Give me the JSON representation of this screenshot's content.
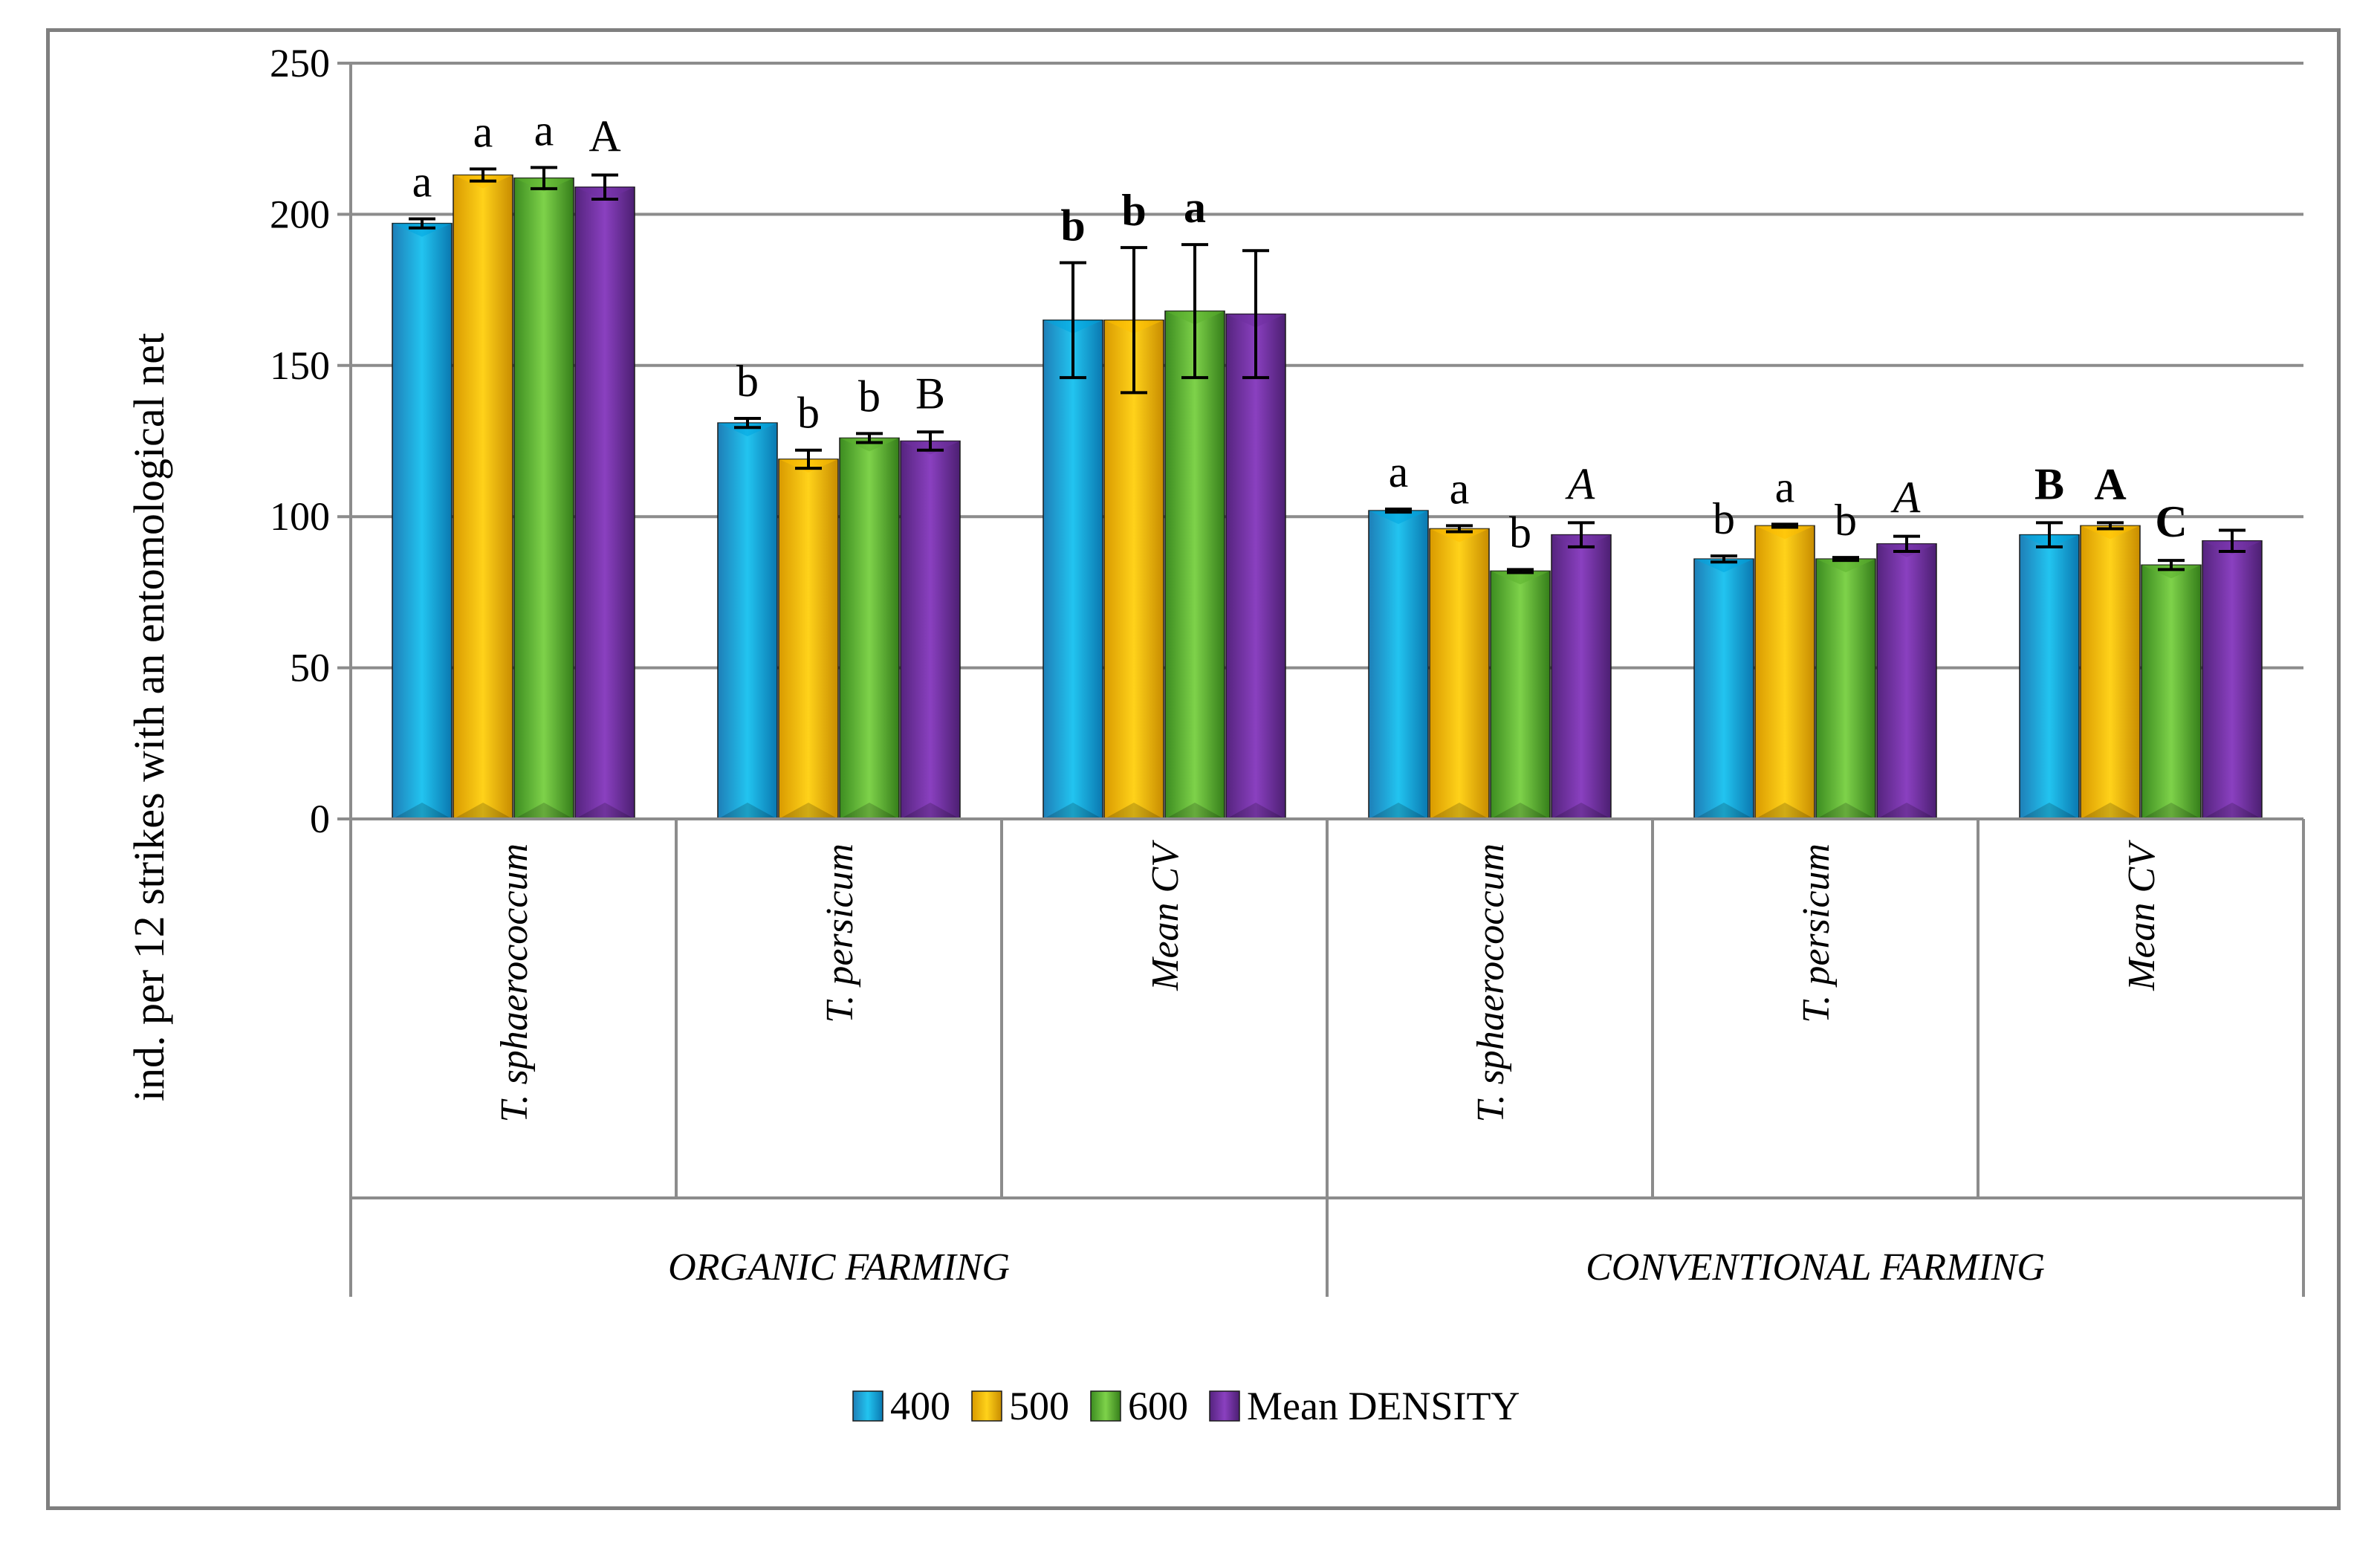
{
  "chart_data": {
    "type": "bar",
    "ylabel": "ind. per 12 strikes with an entomological net",
    "ylim": [
      0,
      250
    ],
    "yticks": [
      0,
      50,
      100,
      150,
      200,
      250
    ],
    "grid": true,
    "legend_position": "bottom",
    "groups": [
      {
        "label": "ORGANIC FARMING",
        "categories": [
          "T. sphaerococcum",
          "T. persicum",
          "Mean CV"
        ]
      },
      {
        "label": "CONVENTIONAL FARMING",
        "categories": [
          "T. sphaerococcum",
          "T. persicum",
          "Mean CV"
        ]
      }
    ],
    "categories": [
      "T. sphaerococcum",
      "T. persicum",
      "Mean CV",
      "T. sphaerococcum",
      "T. persicum",
      "Mean CV"
    ],
    "series": [
      {
        "name": "400",
        "color": "#00a6e0",
        "values": [
          197,
          131,
          165,
          102,
          86,
          94
        ],
        "errors": [
          1.5,
          1.5,
          19,
          0.5,
          1,
          4
        ],
        "letters": [
          "a",
          "b",
          "b",
          "a",
          "b",
          "B"
        ],
        "letter_style": [
          "normal",
          "normal",
          "bold",
          "normal",
          "normal",
          "bold"
        ]
      },
      {
        "name": "500",
        "color": "#ffc000",
        "values": [
          213,
          119,
          165,
          96,
          97,
          97
        ],
        "errors": [
          2,
          3,
          24,
          1,
          0.5,
          1
        ],
        "letters": [
          "a",
          "b",
          "b",
          "a",
          "a",
          "A"
        ],
        "letter_style": [
          "normal",
          "normal",
          "bold",
          "normal",
          "normal",
          "bold"
        ]
      },
      {
        "name": "600",
        "color": "#5db330",
        "values": [
          212,
          126,
          168,
          82,
          86,
          84
        ],
        "errors": [
          3.5,
          1.5,
          22,
          0.5,
          0.5,
          1.5
        ],
        "letters": [
          "a",
          "b",
          "a",
          "b",
          "b",
          "C"
        ],
        "letter_style": [
          "normal",
          "normal",
          "bold",
          "normal",
          "normal",
          "bold"
        ]
      },
      {
        "name": "Mean DENSITY",
        "color": "#7030a0",
        "values": [
          209,
          125,
          167,
          94,
          91,
          92
        ],
        "errors": [
          4,
          3,
          21,
          4,
          2.5,
          3.5
        ],
        "letters": [
          "A",
          "B",
          "",
          "A",
          "A",
          ""
        ],
        "letter_style": [
          "normal",
          "normal",
          "normal",
          "italic",
          "italic",
          "normal"
        ]
      }
    ]
  }
}
